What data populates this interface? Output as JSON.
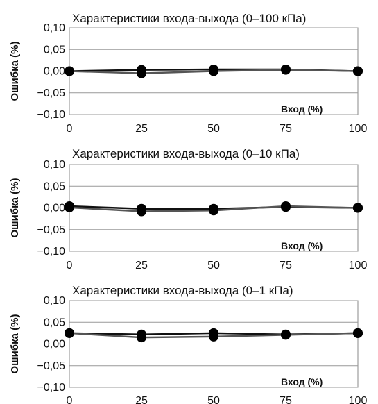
{
  "chart_data": [
    {
      "type": "line",
      "title": "Характеристики входа-выхода (0–100 кПа)",
      "xlabel": "Вход (%)",
      "ylabel": "Ошибка (%)",
      "x": [
        0,
        25,
        50,
        75,
        100
      ],
      "xticks": [
        "0",
        "25",
        "50",
        "75",
        "100"
      ],
      "yticks": [
        "0,10",
        "0,05",
        "0,00",
        "−0,05",
        "−0,10"
      ],
      "ylim": [
        -0.1,
        0.1
      ],
      "grid": true,
      "series": [
        {
          "values": [
            0.0,
            0.003,
            0.004,
            0.004,
            0.0
          ]
        },
        {
          "values": [
            0.0,
            -0.005,
            0.0,
            0.003,
            0.0
          ]
        }
      ]
    },
    {
      "type": "line",
      "title": "Характеристики входа-выхода (0–10 кПа)",
      "xlabel": "Вход (%)",
      "ylabel": "Ошибка (%)",
      "x": [
        0,
        25,
        50,
        75,
        100
      ],
      "xticks": [
        "0",
        "25",
        "50",
        "75",
        "100"
      ],
      "yticks": [
        "0,10",
        "0,05",
        "0,00",
        "−0,05",
        "−0,10"
      ],
      "ylim": [
        -0.1,
        0.1
      ],
      "grid": true,
      "series": [
        {
          "values": [
            0.004,
            -0.002,
            -0.002,
            0.002,
            0.0
          ]
        },
        {
          "values": [
            0.001,
            -0.008,
            -0.006,
            0.004,
            0.0
          ]
        }
      ]
    },
    {
      "type": "line",
      "title": "Характеристики входа-выхода (0–1 кПа)",
      "xlabel": "Вход (%)",
      "ylabel": "Ошибка (%)",
      "x": [
        0,
        25,
        50,
        75,
        100
      ],
      "xticks": [
        "0",
        "25",
        "50",
        "75",
        "100"
      ],
      "yticks": [
        "0,10",
        "0,05",
        "0,00",
        "−0,05",
        "−0,10"
      ],
      "ylim": [
        -0.1,
        0.1
      ],
      "grid": true,
      "series": [
        {
          "values": [
            0.025,
            0.022,
            0.025,
            0.022,
            0.025
          ]
        },
        {
          "values": [
            0.025,
            0.015,
            0.017,
            0.021,
            0.025
          ]
        }
      ]
    }
  ]
}
